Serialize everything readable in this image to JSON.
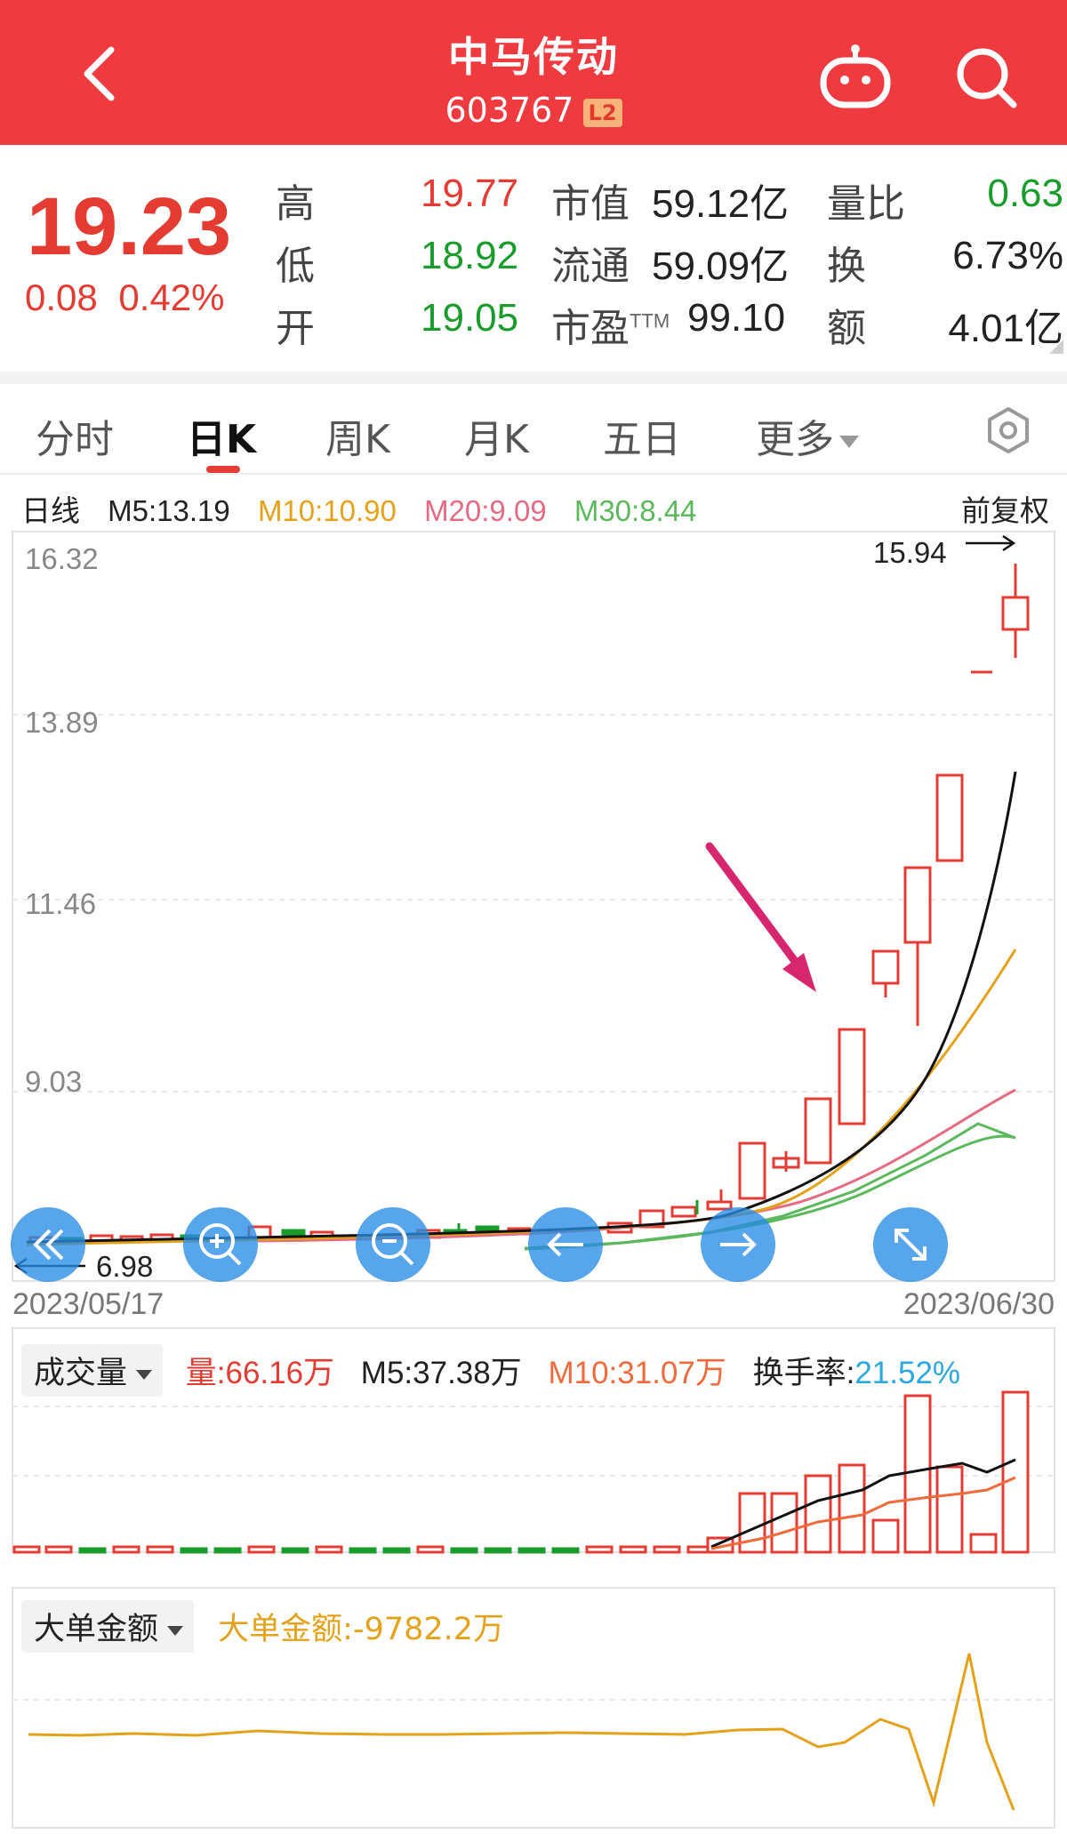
{
  "header": {
    "title": "中马传动",
    "code": "603767",
    "badge": "L2"
  },
  "quote": {
    "price": "19.23",
    "change": "0.08",
    "change_pct": "0.42%",
    "high_label": "高",
    "high": "19.77",
    "low_label": "低",
    "low": "18.92",
    "open_label": "开",
    "open": "19.05",
    "mcap_label": "市值",
    "mcap": "59.12亿",
    "float_label": "流通",
    "float": "59.09亿",
    "pe_label": "市盈",
    "pe_sup": "TTM",
    "pe": "99.10",
    "vr_label": "量比",
    "vr": "0.63",
    "turn_label": "换",
    "turn": "6.73%",
    "amt_label": "额",
    "amt": "4.01亿"
  },
  "tabs": [
    {
      "label": "分时"
    },
    {
      "label": "日K"
    },
    {
      "label": "周K"
    },
    {
      "label": "月K"
    },
    {
      "label": "五日"
    },
    {
      "label": "更多"
    }
  ],
  "ma": {
    "period": "日线",
    "m5": "M5:13.19",
    "m10": "M10:10.90",
    "m20": "M20:9.09",
    "m30": "M30:8.44",
    "adjust": "前复权"
  },
  "kchart": {
    "y_labels": [
      "16.32",
      "13.89",
      "11.46",
      "9.03"
    ],
    "max_label": "15.94",
    "min_label": "6.98",
    "start_date": "2023/05/17",
    "end_date": "2023/06/30"
  },
  "volume": {
    "selector": "成交量",
    "vol": "量:66.16万",
    "m5": "M5:37.38万",
    "m10": "M10:31.07万",
    "turnover_label": "换手率:",
    "turnover": "21.52%"
  },
  "bigorder": {
    "selector": "大单金额",
    "value": "大单金额:-9782.2万"
  },
  "colors": {
    "header_bg": "#ef3a3f",
    "up": "#e43b33",
    "down": "#199c2b",
    "m10": "#e3a21a",
    "m20": "#e56b84",
    "m30": "#5cb85c",
    "turnover": "#2ba8e0"
  },
  "icons": [
    "back-icon",
    "robot-icon",
    "search-icon",
    "settings-hex-icon",
    "zoom-in-icon",
    "zoom-out-icon",
    "arrow-left-icon",
    "arrow-right-icon",
    "fullscreen-icon",
    "double-left-icon"
  ]
}
